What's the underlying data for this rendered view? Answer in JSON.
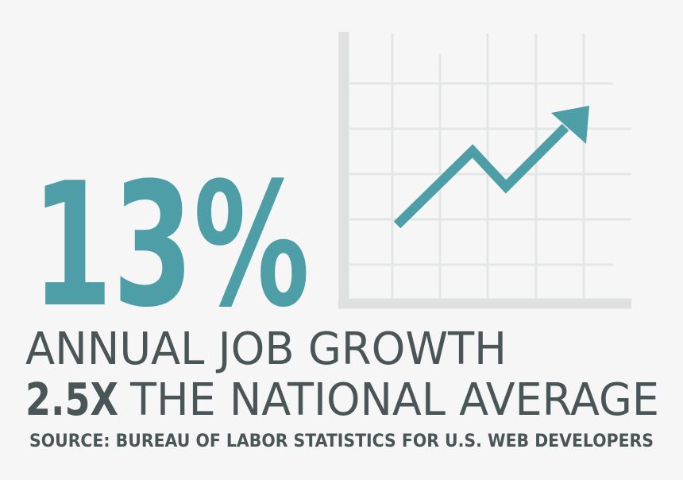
{
  "headline": {
    "figure": "13%"
  },
  "text": {
    "line1": "ANNUAL JOB GROWTH",
    "line2_emphasis": "2.5X",
    "line2_rest": "THE NATIONAL AVERAGE",
    "source": "SOURCE: BUREAU OF LABOR STATISTICS FOR U.S. WEB DEVELOPERS"
  }
}
